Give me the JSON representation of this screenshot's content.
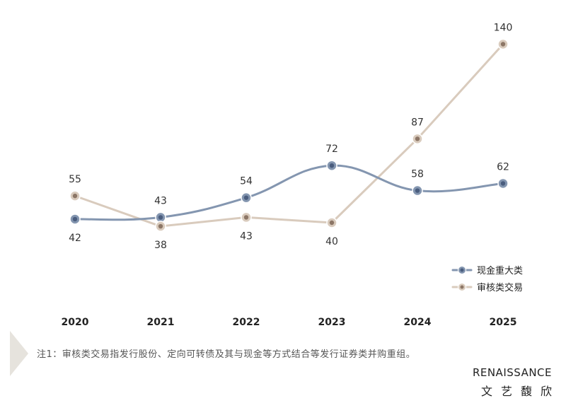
{
  "chart_data": {
    "type": "line",
    "categories": [
      "2020",
      "2021",
      "2022",
      "2023",
      "2024",
      "2025"
    ],
    "series": [
      {
        "name": "现金重大类",
        "values": [
          42,
          43,
          54,
          72,
          58,
          62
        ],
        "color": "#8496b0",
        "marker_color": "#4a5d7e",
        "labels": [
          "42",
          "43",
          "54",
          "72",
          "58",
          "62"
        ],
        "label_positions": [
          "below",
          "above",
          "above",
          "above",
          "above",
          "above"
        ],
        "smooth": true
      },
      {
        "name": "审核类交易",
        "values": [
          55,
          38,
          43,
          40,
          87,
          140
        ],
        "color": "#d9cbbd",
        "marker_color": "#8c7666",
        "labels": [
          "55",
          "38",
          "43",
          "40",
          "87",
          "140"
        ],
        "label_positions": [
          "above",
          "below",
          "below",
          "below",
          "above",
          "above"
        ],
        "smooth": false
      }
    ],
    "ylim": [
      0,
      160
    ],
    "grid": false,
    "legend_position": "right"
  },
  "footnote": "注1：审核类交易指发行股份、定向可转债及其与现金等方式结合等发行证券类并购重组。",
  "brand": {
    "en": "RENAISSANCE",
    "zh": "文艺馥欣"
  }
}
